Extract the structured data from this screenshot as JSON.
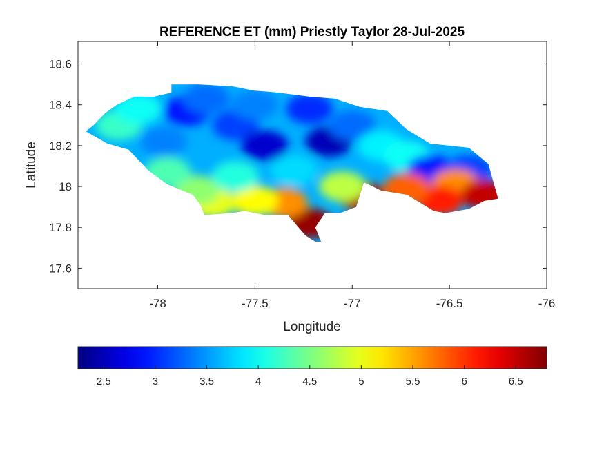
{
  "chart_data": {
    "type": "heatmap",
    "title": "REFERENCE ET (mm) Priestly Taylor 28-Jul-2025",
    "xlabel": "Longitude",
    "ylabel": "Latitude",
    "xlim": [
      -78.41,
      -76.0
    ],
    "ylim": [
      17.5,
      18.71
    ],
    "x_ticks": [
      -78,
      -77.5,
      -77,
      -76.5,
      -76
    ],
    "x_tick_labels": [
      "-78",
      "-77.5",
      "-77",
      "-76.5",
      "-76"
    ],
    "y_ticks": [
      17.6,
      17.8,
      18,
      18.2,
      18.4,
      18.6
    ],
    "y_tick_labels": [
      "17.6",
      "17.8",
      "18",
      "18.2",
      "18.4",
      "18.6"
    ],
    "grid": false,
    "colormap": "jet",
    "colorbar": {
      "location": "bottom",
      "clim": [
        2.25,
        6.8
      ],
      "ticks": [
        2.5,
        3,
        3.5,
        4,
        4.5,
        5,
        5.5,
        6,
        6.5
      ],
      "tick_labels": [
        "2.5",
        "3",
        "3.5",
        "4",
        "4.5",
        "5",
        "5.5",
        "6",
        "6.5"
      ]
    },
    "region_outline": [
      [
        -78.37,
        18.27
      ],
      [
        -78.33,
        18.3
      ],
      [
        -78.27,
        18.36
      ],
      [
        -78.21,
        18.4
      ],
      [
        -78.12,
        18.44
      ],
      [
        -78.02,
        18.44
      ],
      [
        -77.93,
        18.46
      ],
      [
        -77.93,
        18.5
      ],
      [
        -77.79,
        18.5
      ],
      [
        -77.61,
        18.49
      ],
      [
        -77.51,
        18.47
      ],
      [
        -77.38,
        18.46
      ],
      [
        -77.22,
        18.44
      ],
      [
        -77.09,
        18.43
      ],
      [
        -76.96,
        18.39
      ],
      [
        -76.82,
        18.37
      ],
      [
        -76.72,
        18.28
      ],
      [
        -76.6,
        18.21
      ],
      [
        -76.4,
        18.19
      ],
      [
        -76.3,
        18.11
      ],
      [
        -76.25,
        17.94
      ],
      [
        -76.32,
        17.93
      ],
      [
        -76.4,
        17.89
      ],
      [
        -76.52,
        17.87
      ],
      [
        -76.58,
        17.88
      ],
      [
        -76.72,
        17.96
      ],
      [
        -76.85,
        17.98
      ],
      [
        -76.94,
        18.02
      ],
      [
        -76.98,
        17.9
      ],
      [
        -77.06,
        17.87
      ],
      [
        -77.14,
        17.87
      ],
      [
        -77.19,
        17.8
      ],
      [
        -77.16,
        17.73
      ],
      [
        -77.19,
        17.73
      ],
      [
        -77.24,
        17.76
      ],
      [
        -77.33,
        17.86
      ],
      [
        -77.45,
        17.86
      ],
      [
        -77.55,
        17.88
      ],
      [
        -77.62,
        17.87
      ],
      [
        -77.76,
        17.86
      ],
      [
        -77.78,
        17.91
      ],
      [
        -77.82,
        17.96
      ],
      [
        -77.95,
        18.01
      ],
      [
        -78.05,
        18.08
      ],
      [
        -78.15,
        18.18
      ],
      [
        -78.26,
        18.21
      ],
      [
        -78.37,
        18.27
      ]
    ],
    "value_anchors": [
      {
        "lon": -78.2,
        "lat": 18.3,
        "value": 4.2
      },
      {
        "lon": -78.1,
        "lat": 18.38,
        "value": 4.0
      },
      {
        "lon": -77.97,
        "lat": 18.22,
        "value": 3.4
      },
      {
        "lon": -77.85,
        "lat": 18.37,
        "value": 2.9
      },
      {
        "lon": -77.75,
        "lat": 18.43,
        "value": 3.3
      },
      {
        "lon": -77.6,
        "lat": 18.3,
        "value": 3.1
      },
      {
        "lon": -77.45,
        "lat": 18.2,
        "value": 2.6
      },
      {
        "lon": -77.5,
        "lat": 18.4,
        "value": 3.4
      },
      {
        "lon": -77.22,
        "lat": 18.38,
        "value": 3.0
      },
      {
        "lon": -77.12,
        "lat": 18.22,
        "value": 2.5
      },
      {
        "lon": -77.0,
        "lat": 18.3,
        "value": 3.3
      },
      {
        "lon": -76.85,
        "lat": 18.2,
        "value": 3.9
      },
      {
        "lon": -76.72,
        "lat": 18.15,
        "value": 4.0
      },
      {
        "lon": -76.6,
        "lat": 18.08,
        "value": 2.9
      },
      {
        "lon": -76.4,
        "lat": 18.08,
        "value": 3.1
      },
      {
        "lon": -76.47,
        "lat": 18.01,
        "value": 5.6
      },
      {
        "lon": -76.32,
        "lat": 17.96,
        "value": 6.5
      },
      {
        "lon": -76.55,
        "lat": 17.93,
        "value": 6.1
      },
      {
        "lon": -76.72,
        "lat": 17.99,
        "value": 5.8
      },
      {
        "lon": -76.95,
        "lat": 17.95,
        "value": 6.6
      },
      {
        "lon": -77.05,
        "lat": 18.0,
        "value": 4.8
      },
      {
        "lon": -77.22,
        "lat": 17.82,
        "value": 6.7
      },
      {
        "lon": -77.35,
        "lat": 17.92,
        "value": 5.6
      },
      {
        "lon": -77.5,
        "lat": 17.93,
        "value": 5.1
      },
      {
        "lon": -77.72,
        "lat": 17.92,
        "value": 5.0
      },
      {
        "lon": -77.8,
        "lat": 17.98,
        "value": 4.6
      },
      {
        "lon": -77.95,
        "lat": 18.07,
        "value": 4.3
      },
      {
        "lon": -77.3,
        "lat": 18.08,
        "value": 3.8
      },
      {
        "lon": -77.6,
        "lat": 18.05,
        "value": 4.1
      }
    ]
  }
}
